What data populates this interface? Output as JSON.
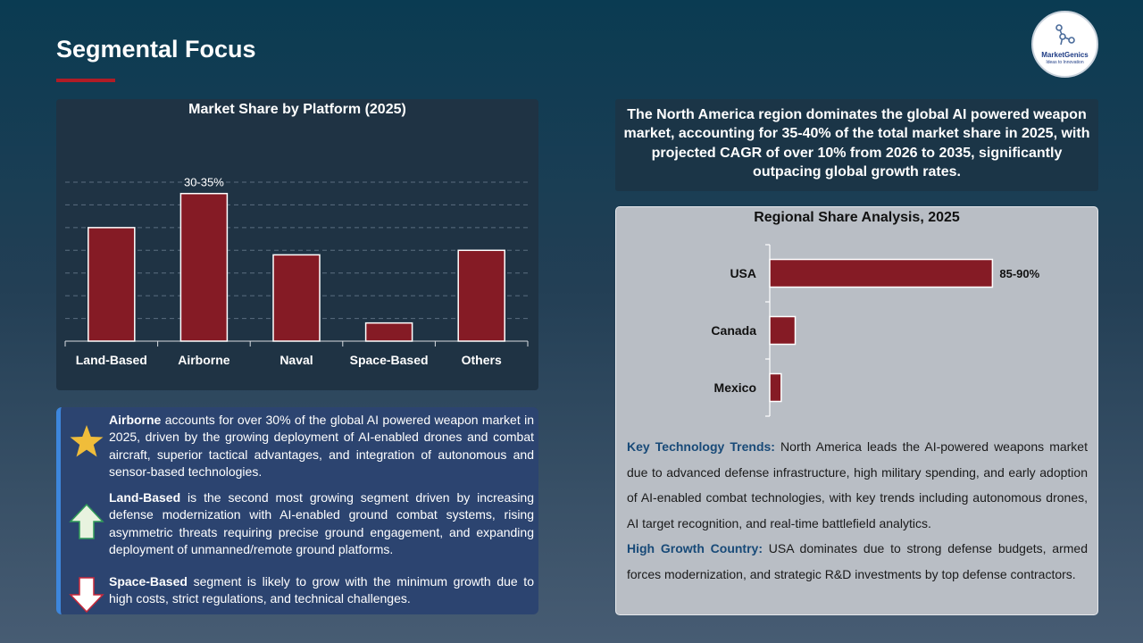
{
  "page": {
    "title": "Segmental Focus"
  },
  "logo": {
    "name": "MarketGenics",
    "tagline": "Ideas to Innovation"
  },
  "colors": {
    "bar": "#851b25",
    "accent": "#b01c26",
    "heading_blue": "#184a78",
    "insight_border": "#3d86dc"
  },
  "chart_data": [
    {
      "type": "bar",
      "title": "Market Share by Platform (2025)",
      "categories": [
        "Land-Based",
        "Airborne",
        "Naval",
        "Space-Based",
        "Others"
      ],
      "values": [
        25,
        32.5,
        19,
        4,
        20
      ],
      "data_labels": [
        "",
        "30-35%",
        "",
        "",
        ""
      ],
      "ylim": [
        0,
        35
      ],
      "grid": true,
      "xlabel": "",
      "ylabel": ""
    },
    {
      "type": "bar",
      "orientation": "horizontal",
      "title": "Regional Share Analysis, 2025",
      "categories": [
        "USA",
        "Canada",
        "Mexico"
      ],
      "values": [
        87.5,
        10,
        4.5
      ],
      "data_labels": [
        "85-90%",
        "",
        ""
      ],
      "xlim": [
        0,
        100
      ],
      "grid": false,
      "xlabel": "",
      "ylabel": ""
    }
  ],
  "insights": [
    {
      "icon": "star-icon",
      "lead": "Airborne",
      "text": " accounts for over 30% of the global AI powered weapon market in 2025, driven by the growing deployment of AI-enabled drones and combat aircraft, superior tactical advantages, and integration of autonomous and sensor-based technologies."
    },
    {
      "icon": "arrow-up-icon",
      "lead": "Land-Based",
      "text": " is the second most growing segment driven by increasing defense modernization with AI-enabled ground combat systems, rising asymmetric threats requiring precise ground engagement, and expanding deployment of unmanned/remote ground platforms."
    },
    {
      "icon": "arrow-down-icon",
      "lead": "Space-Based",
      "text": " segment is likely to grow with the minimum growth due to high costs, strict regulations, and technical challenges."
    }
  ],
  "summary": "The North America region dominates the global AI powered weapon market, accounting for 35-40% of the total market share in 2025, with projected CAGR of over 10% from 2026 to 2035, significantly outpacing global growth rates.",
  "trends": {
    "tech_head": "Key Technology Trends:",
    "tech_text": " North America leads the AI-powered weapons market due to advanced defense infrastructure, high military spending, and early adoption of AI-enabled combat technologies, with key trends including autonomous drones, AI target recognition, and real-time battlefield analytics.",
    "growth_head": "High Growth Country:",
    "growth_text": " USA dominates due to strong defense budgets, armed forces modernization, and strategic R&D investments by top defense contractors."
  }
}
